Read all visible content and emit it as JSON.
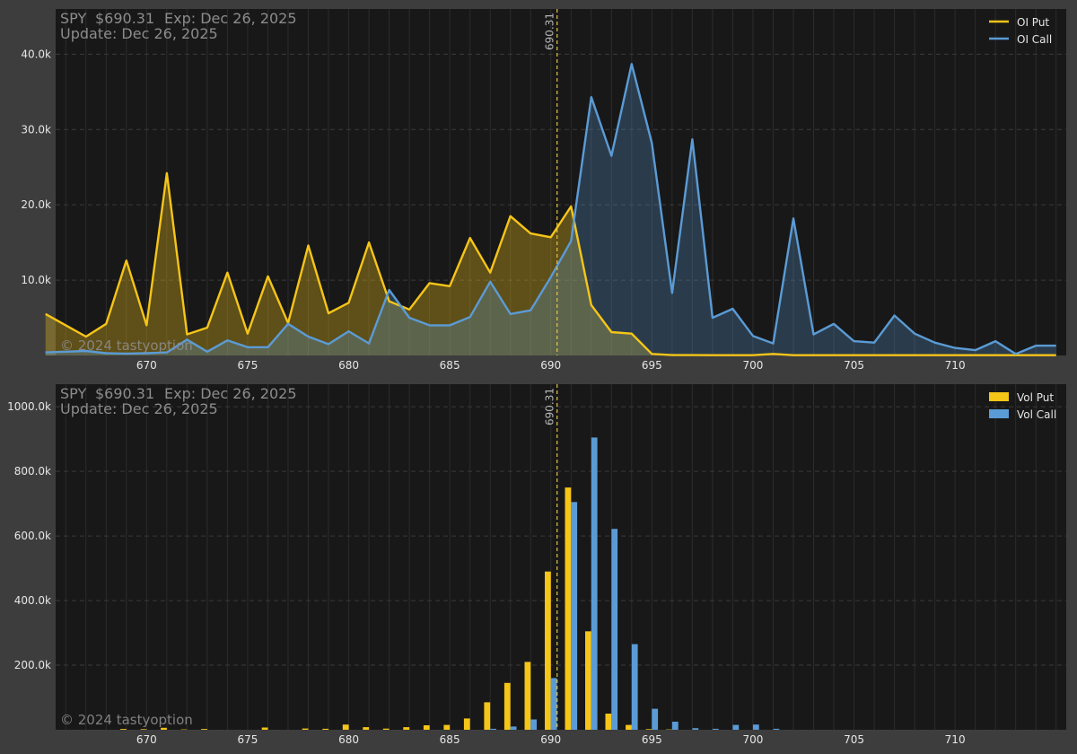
{
  "colors": {
    "put": "#f5c518",
    "call": "#5b9bd5",
    "background": "#3d3d3d",
    "plot_background": "#181818",
    "grid": "#2c2c2c",
    "text": "#8c8c8c",
    "tick_text": "#e6e6e6",
    "spot_line": "#e8c547"
  },
  "chart_data": [
    {
      "type": "area",
      "info": {
        "ticker": "SPY",
        "price": "$690.31",
        "expiration": "Exp: Dec 26, 2025",
        "update": "Update: Dec 26, 2025"
      },
      "watermark": "© 2024 tastyoption",
      "spot_label": "690.31",
      "spot": 690.31,
      "legend_position": "top-right",
      "grid": true,
      "xlim": [
        665.5,
        715.5
      ],
      "ylim": [
        0,
        46000
      ],
      "x_ticks": [
        670,
        675,
        680,
        685,
        690,
        695,
        700,
        705,
        710
      ],
      "x_tick_labels": [
        "670",
        "675",
        "680",
        "685",
        "690",
        "695",
        "700",
        "705",
        "710"
      ],
      "y_ticks": [
        10000,
        20000,
        30000,
        40000
      ],
      "y_tick_labels": [
        "10.0k",
        "20.0k",
        "30.0k",
        "40.0k"
      ],
      "x": [
        665,
        666,
        667,
        668,
        669,
        670,
        671,
        672,
        673,
        674,
        675,
        676,
        677,
        678,
        679,
        680,
        681,
        682,
        683,
        684,
        685,
        686,
        687,
        688,
        689,
        690,
        691,
        692,
        693,
        694,
        695,
        696,
        697,
        698,
        699,
        700,
        701,
        702,
        703,
        704,
        705,
        706,
        707,
        708,
        709,
        710,
        711,
        712,
        713,
        714,
        715
      ],
      "series": [
        {
          "name": "OI Put",
          "color": "put",
          "values": [
            5500,
            4000,
            2500,
            4200,
            12600,
            4000,
            24200,
            2800,
            3700,
            11000,
            2900,
            10500,
            4300,
            14600,
            5600,
            7000,
            15000,
            7200,
            6100,
            9600,
            9200,
            15600,
            11000,
            18500,
            16200,
            15700,
            19800,
            6700,
            3100,
            2900,
            200,
            50,
            50,
            30,
            30,
            30,
            200,
            30,
            30,
            30,
            30,
            30,
            30,
            30,
            30,
            30,
            30,
            30,
            30,
            30,
            30
          ]
        },
        {
          "name": "OI Call",
          "color": "call",
          "values": [
            400,
            500,
            600,
            300,
            250,
            300,
            400,
            2100,
            500,
            2000,
            1100,
            1100,
            4200,
            2500,
            1500,
            3200,
            1600,
            8700,
            5000,
            4000,
            4000,
            5100,
            9800,
            5500,
            6000,
            10400,
            15200,
            34300,
            26500,
            38700,
            28200,
            8300,
            28700,
            5000,
            6200,
            2600,
            1600,
            18200,
            2800,
            4200,
            1900,
            1700,
            5300,
            2900,
            1700,
            1000,
            700,
            1900,
            200,
            1300,
            1300
          ]
        }
      ]
    },
    {
      "type": "bar",
      "info": {
        "ticker": "SPY",
        "price": "$690.31",
        "expiration": "Exp: Dec 26, 2025",
        "update": "Update: Dec 26, 2025"
      },
      "watermark": "© 2024 tastyoption",
      "spot_label": "690.31",
      "spot": 690.31,
      "legend_position": "top-right",
      "grid": true,
      "xlim": [
        665.5,
        715.5
      ],
      "ylim": [
        0,
        1070000
      ],
      "x_ticks": [
        670,
        675,
        680,
        685,
        690,
        695,
        700,
        705,
        710
      ],
      "x_tick_labels": [
        "670",
        "675",
        "680",
        "685",
        "690",
        "695",
        "700",
        "705",
        "710"
      ],
      "y_ticks": [
        200000,
        400000,
        600000,
        800000,
        1000000
      ],
      "y_tick_labels": [
        "200.0k",
        "400.0k",
        "600.0k",
        "800.0k",
        "1000.0k"
      ],
      "x": [
        665,
        666,
        667,
        668,
        669,
        670,
        671,
        672,
        673,
        674,
        675,
        676,
        677,
        678,
        679,
        680,
        681,
        682,
        683,
        684,
        685,
        686,
        687,
        688,
        689,
        690,
        691,
        692,
        693,
        694,
        695,
        696,
        697,
        698,
        699,
        700,
        701,
        702,
        703,
        704,
        705,
        706,
        707,
        708,
        709,
        710,
        711,
        712,
        713,
        714,
        715
      ],
      "series": [
        {
          "name": "Vol Put",
          "color": "put",
          "values": [
            0,
            0,
            0,
            0,
            2500,
            2000,
            6000,
            1000,
            2500,
            0,
            0,
            7000,
            0,
            4000,
            3000,
            16000,
            8000,
            3500,
            8000,
            14000,
            15000,
            35000,
            85000,
            145000,
            210000,
            490000,
            750000,
            305000,
            50000,
            15000,
            2000,
            1000,
            0,
            0,
            0,
            0,
            0,
            0,
            0,
            0,
            0,
            0,
            0,
            0,
            0,
            0,
            0,
            0,
            0,
            0,
            0
          ]
        },
        {
          "name": "Vol Call",
          "color": "call",
          "values": [
            0,
            0,
            0,
            0,
            0,
            0,
            0,
            0,
            0,
            0,
            0,
            0,
            0,
            0,
            0,
            0,
            0,
            0,
            0,
            0,
            0,
            0,
            3000,
            10000,
            32000,
            160000,
            705000,
            905000,
            622000,
            265000,
            65000,
            25000,
            5000,
            3000,
            15000,
            16000,
            3000,
            0,
            0,
            0,
            0,
            0,
            0,
            0,
            0,
            0,
            0,
            0,
            0,
            0,
            0
          ]
        }
      ]
    }
  ]
}
